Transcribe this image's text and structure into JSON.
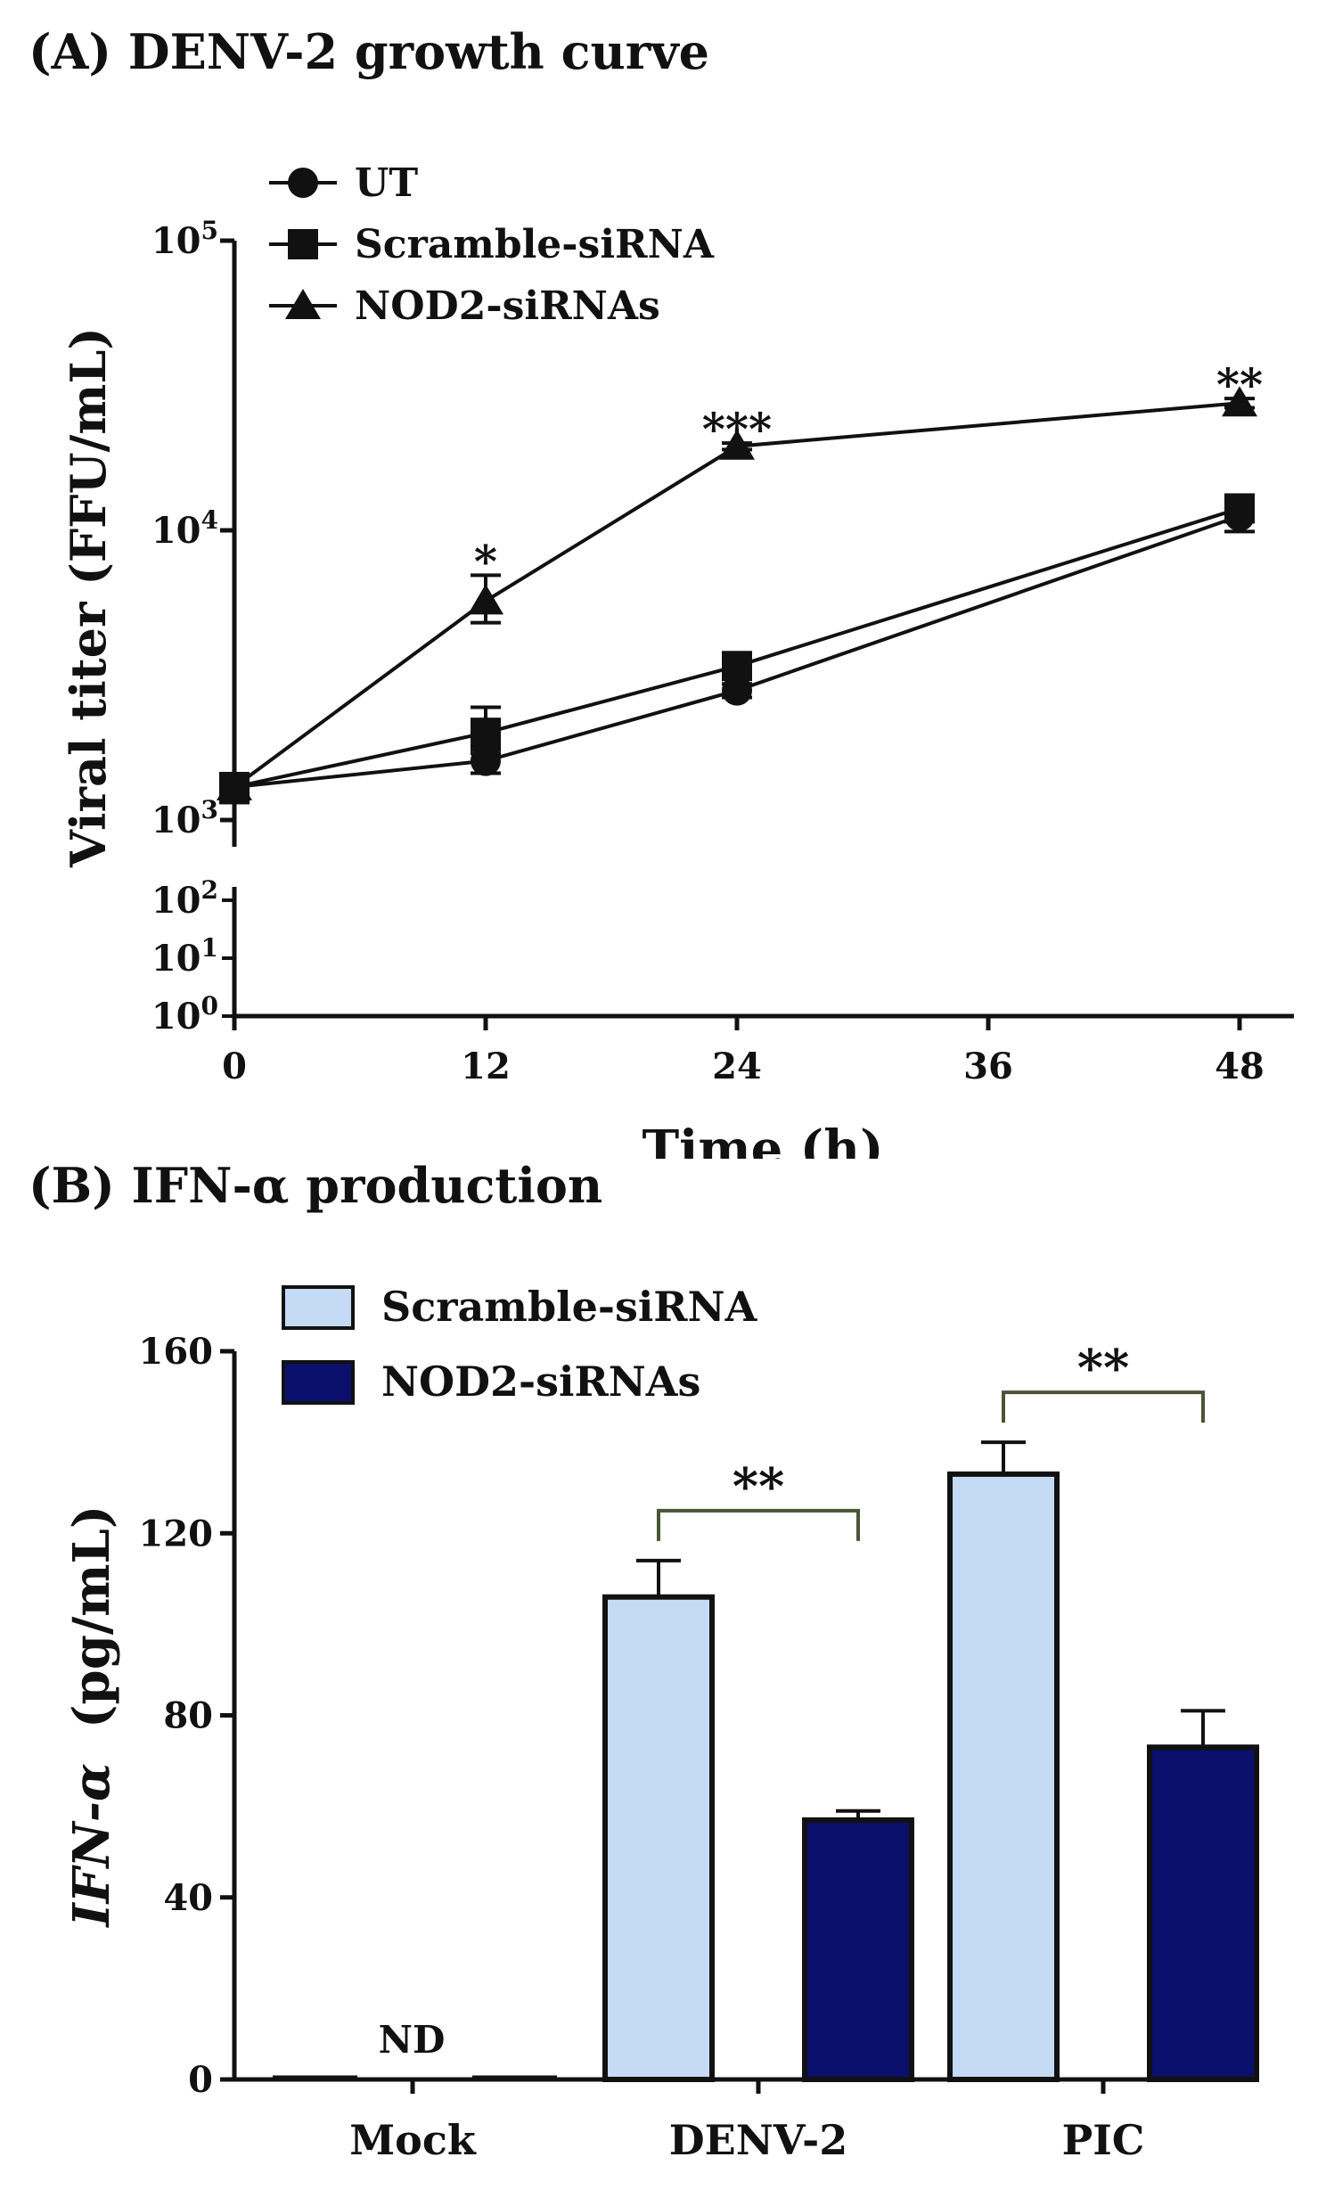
{
  "chart_data": [
    {
      "panel_title": "(A) DENV-2 growth curve",
      "type": "line",
      "xlabel": "Time (h)",
      "ylabel": "Viral titer (FFU/mL)",
      "x_ticks": [
        "0",
        "12",
        "24",
        "36",
        "48"
      ],
      "xlim": [
        0,
        50
      ],
      "y_scale": "log (broken axis)",
      "y_ticks_upper": [
        {
          "base": "10",
          "exp": "3",
          "value": 1000
        },
        {
          "base": "10",
          "exp": "4",
          "value": 10000
        },
        {
          "base": "10",
          "exp": "5",
          "value": 100000
        }
      ],
      "y_ticks_lower": [
        {
          "base": "10",
          "exp": "0",
          "value": 1
        },
        {
          "base": "10",
          "exp": "1",
          "value": 10
        },
        {
          "base": "10",
          "exp": "2",
          "value": 100
        }
      ],
      "ylim_upper": [
        1000,
        100000
      ],
      "ylim_lower": [
        1,
        100
      ],
      "legend_position": "top-left",
      "grid": false,
      "series": [
        {
          "name": "UT",
          "marker": "circle",
          "x": [
            0,
            12,
            24,
            48
          ],
          "y": [
            1300,
            1600,
            2800,
            11200
          ],
          "err_plus": [
            130,
            150,
            150,
            1200
          ],
          "err_minus": [
            150,
            150,
            150,
            1300
          ]
        },
        {
          "name": "Scramble-siRNA",
          "marker": "square",
          "x": [
            0,
            12,
            24,
            48
          ],
          "y": [
            1300,
            2000,
            3400,
            11900
          ],
          "err_plus": [
            130,
            450,
            250,
            1100
          ],
          "err_minus": [
            150,
            300,
            250,
            1100
          ]
        },
        {
          "name": "NOD2-siRNAs",
          "marker": "triangle",
          "x": [
            0,
            12,
            24,
            48
          ],
          "y": [
            1300,
            5700,
            19500,
            27500
          ],
          "err_plus": [
            130,
            1300,
            500,
            1000
          ],
          "err_minus": [
            150,
            900,
            500,
            1000
          ]
        }
      ],
      "annotations": [
        {
          "x": 12,
          "text": "*"
        },
        {
          "x": 24,
          "text": "***"
        },
        {
          "x": 48,
          "text": "**"
        }
      ]
    },
    {
      "panel_title": "(B) IFN-α production",
      "type": "bar",
      "ylabel_italic": "IFN-α",
      "ylabel_unit": "(pg/mL)",
      "categories": [
        "Mock",
        "DENV-2",
        "PIC"
      ],
      "y_ticks": [
        "0",
        "40",
        "80",
        "120",
        "160"
      ],
      "ylim": [
        0,
        160
      ],
      "legend_position": "top-left",
      "grid": false,
      "series": [
        {
          "name": "Scramble-siRNA",
          "color": "#c5daf4",
          "values": [
            0,
            106,
            133
          ],
          "errors": [
            0,
            8,
            7
          ]
        },
        {
          "name": "NOD2-siRNAs",
          "color": "#0a0f6b",
          "values": [
            0,
            57,
            73
          ],
          "errors": [
            0,
            2,
            8
          ]
        }
      ],
      "annotations": [
        {
          "category": "Mock",
          "text": "ND"
        },
        {
          "category": "DENV-2",
          "text": "**",
          "type": "bracket"
        },
        {
          "category": "PIC",
          "text": "**",
          "type": "bracket"
        }
      ]
    }
  ]
}
